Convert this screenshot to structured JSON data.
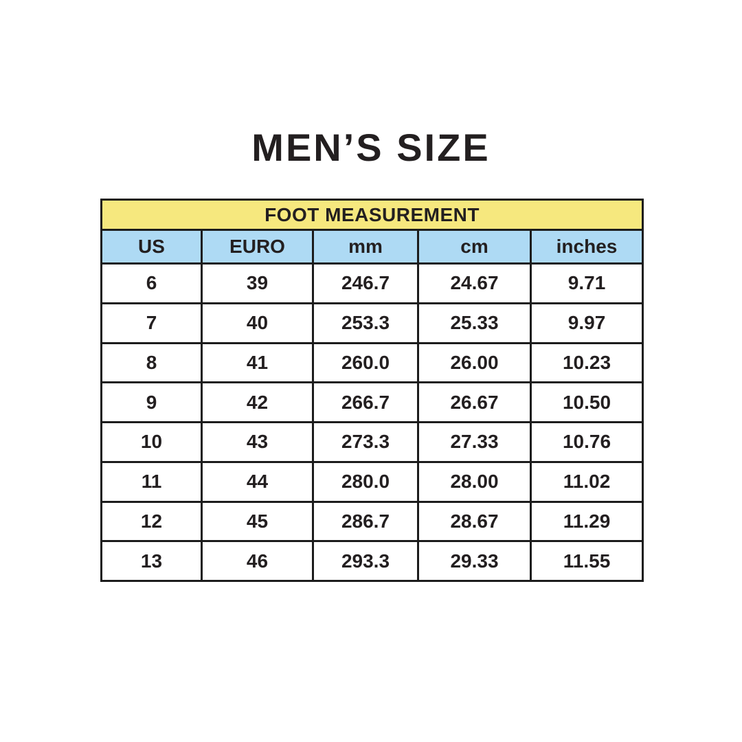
{
  "page": {
    "background": "#ffffff"
  },
  "chart_data": {
    "type": "table",
    "title": "MEN’S SIZE",
    "table_header": "FOOT MEASUREMENT",
    "columns": [
      "US",
      "EURO",
      "mm",
      "cm",
      "inches"
    ],
    "rows": [
      [
        "6",
        "39",
        "246.7",
        "24.67",
        "9.71"
      ],
      [
        "7",
        "40",
        "253.3",
        "25.33",
        "9.97"
      ],
      [
        "8",
        "41",
        "260.0",
        "26.00",
        "10.23"
      ],
      [
        "9",
        "42",
        "266.7",
        "26.67",
        "10.50"
      ],
      [
        "10",
        "43",
        "273.3",
        "27.33",
        "10.76"
      ],
      [
        "11",
        "44",
        "280.0",
        "28.00",
        "11.02"
      ],
      [
        "12",
        "45",
        "286.7",
        "28.67",
        "11.29"
      ],
      [
        "13",
        "46",
        "293.3",
        "29.33",
        "11.55"
      ]
    ],
    "colors": {
      "header_yellow": "#f6e87e",
      "header_blue": "#aedaf4",
      "border": "#1c1c1c",
      "text": "#231f20",
      "background": "#ffffff"
    }
  }
}
